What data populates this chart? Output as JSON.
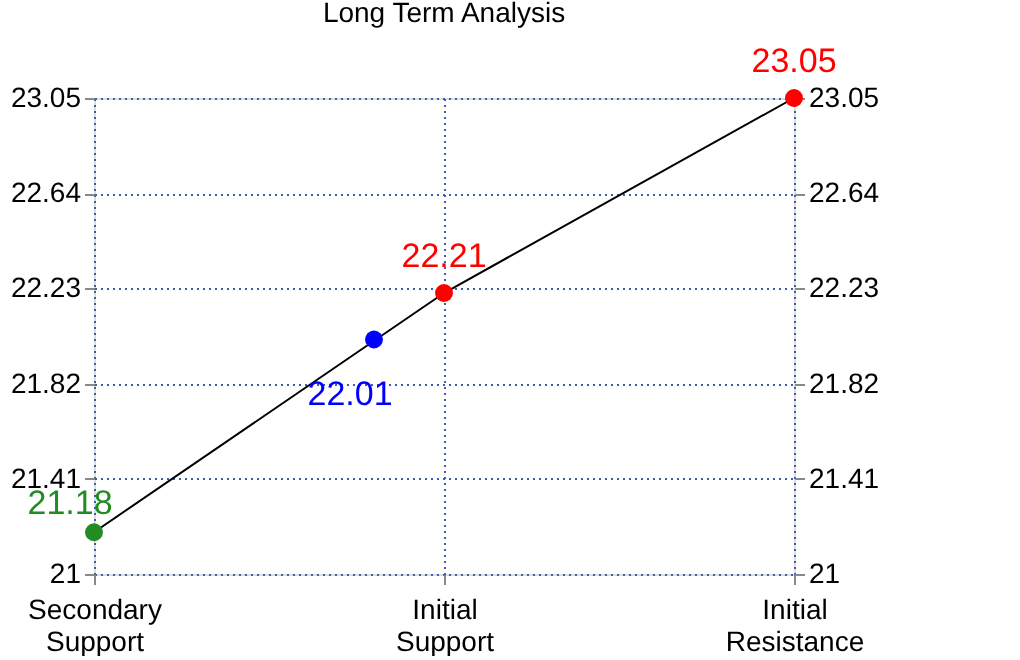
{
  "chart_data": {
    "type": "line",
    "title": "Long Term Analysis",
    "categories": [
      "Secondary Support",
      "Initial Support",
      "Initial Resistance"
    ],
    "series": [
      {
        "color": "#000000",
        "colors": [
          "#228b22",
          "#ff0000",
          "#ff0000"
        ],
        "values": [
          21.18,
          22.21,
          23.05
        ]
      },
      {
        "type": "scatter",
        "colors": [
          null,
          "#0000ff",
          null
        ],
        "values": [
          null,
          22.01,
          null
        ]
      }
    ],
    "marker": "circle",
    "data_labels": true,
    "ylim": [
      21,
      23.05
    ],
    "yticks": [
      21,
      21.41,
      21.82,
      22.23,
      22.64,
      23.05
    ],
    "y2lim": [
      21,
      23.05
    ],
    "y2ticks": [
      21,
      21.41,
      21.82,
      22.23,
      22.64,
      23.05
    ],
    "grid": true
  }
}
